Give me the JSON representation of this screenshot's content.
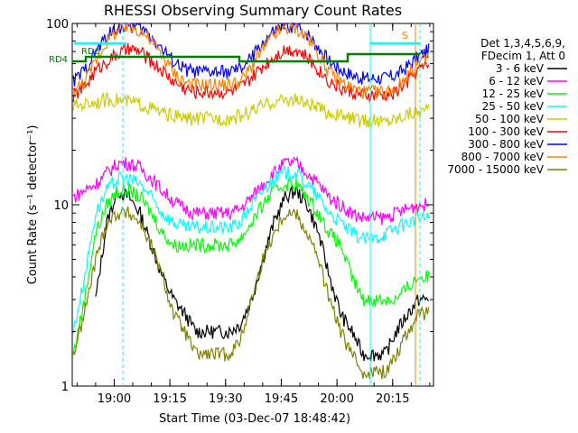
{
  "chart_data": {
    "type": "line",
    "title": "RHESSI Observing Summary Count Rates",
    "xlabel": "Start Time (03-Dec-07 18:48:42)",
    "ylabel": "Count Rate (s⁻¹ detector⁻¹)",
    "y_scale": "log",
    "ylim": [
      1,
      100
    ],
    "xlim": [
      "18:48:42",
      "20:26:00"
    ],
    "x_ticks": [
      "19:00",
      "19:15",
      "19:30",
      "19:45",
      "20:00",
      "20:15"
    ],
    "y_ticks": [
      "1",
      "10",
      "100"
    ],
    "legend_header": [
      "Det 1,3,4,5,6,9,",
      "FDecim 1, Att 0"
    ],
    "legend_position": "right",
    "annotations": [
      "RD0",
      "RD4",
      "S"
    ],
    "x": [
      "18:49",
      "18:52",
      "18:55",
      "18:58",
      "19:01",
      "19:04",
      "19:07",
      "19:10",
      "19:13",
      "19:16",
      "19:19",
      "19:22",
      "19:25",
      "19:28",
      "19:31",
      "19:34",
      "19:37",
      "19:40",
      "19:43",
      "19:46",
      "19:49",
      "19:52",
      "19:55",
      "19:58",
      "20:01",
      "20:04",
      "20:07",
      "20:10",
      "20:13",
      "20:16",
      "20:19",
      "20:22",
      "20:25"
    ],
    "series": [
      {
        "name": "3 - 6 keV",
        "color": "#000000",
        "values": [
          null,
          null,
          3,
          8,
          12,
          11,
          9,
          6,
          4,
          3,
          2.5,
          2,
          2,
          2,
          2,
          2.2,
          3,
          5,
          8,
          11,
          12,
          10,
          7,
          4,
          2.5,
          2,
          1.5,
          1.5,
          1.5,
          2,
          2.5,
          3,
          3
        ]
      },
      {
        "name": "6 - 12 keV",
        "color": "#ff00ff",
        "values": [
          11,
          12,
          13,
          15,
          17,
          17,
          16,
          14,
          12,
          10.5,
          9.5,
          9,
          9,
          9,
          9,
          9.5,
          11,
          13,
          15,
          17,
          17,
          15,
          13,
          11,
          10,
          9,
          8.5,
          8.5,
          8.5,
          9,
          9.5,
          10,
          10
        ]
      },
      {
        "name": "12 - 25 keV",
        "color": "#00ff00",
        "values": [
          1.5,
          3,
          7,
          10,
          12,
          12,
          11,
          9,
          7,
          6,
          6,
          6,
          6,
          6,
          6,
          6.5,
          8,
          10,
          12,
          13,
          13,
          11,
          9,
          7,
          6,
          4,
          3,
          3,
          3,
          3,
          3.5,
          4,
          4
        ]
      },
      {
        "name": "25 - 50 keV",
        "color": "#00ffff",
        "values": [
          2,
          4,
          9,
          12,
          14,
          14,
          13,
          11,
          9,
          8,
          7.5,
          7.5,
          7.5,
          7.5,
          7.5,
          8,
          10,
          12,
          14,
          15,
          15,
          13,
          11,
          9,
          8,
          7,
          6.5,
          6.5,
          7,
          7.5,
          8,
          8.5,
          8.5
        ]
      },
      {
        "name": "50 - 100 keV",
        "color": "#cccc00",
        "values": [
          35,
          36,
          37,
          38,
          38,
          37,
          36,
          34,
          32,
          31,
          30,
          30,
          30,
          30,
          30,
          31,
          33,
          35,
          37,
          38,
          38,
          36,
          34,
          32,
          31,
          30,
          29,
          29,
          29,
          30,
          32,
          33,
          33
        ]
      },
      {
        "name": "100 - 300 keV",
        "color": "#ff0000",
        "values": [
          40,
          45,
          55,
          62,
          68,
          72,
          70,
          62,
          55,
          48,
          44,
          42,
          42,
          42,
          42,
          44,
          50,
          58,
          66,
          72,
          72,
          65,
          56,
          48,
          44,
          42,
          40,
          40,
          40,
          42,
          48,
          56,
          60
        ]
      },
      {
        "name": "300 - 800 keV",
        "color": "#0000ff",
        "values": [
          48,
          55,
          70,
          85,
          95,
          97,
          95,
          85,
          72,
          62,
          56,
          54,
          54,
          54,
          54,
          56,
          65,
          78,
          90,
          97,
          97,
          88,
          74,
          62,
          56,
          52,
          50,
          50,
          50,
          52,
          58,
          66,
          72
        ]
      },
      {
        "name": "800 - 7000 keV",
        "color": "#ff8000",
        "values": [
          42,
          48,
          62,
          80,
          92,
          95,
          92,
          80,
          66,
          54,
          48,
          46,
          46,
          46,
          46,
          48,
          58,
          72,
          86,
          94,
          94,
          84,
          68,
          54,
          48,
          44,
          42,
          42,
          42,
          44,
          52,
          60,
          66
        ]
      },
      {
        "name": "7000 - 15000 keV",
        "color": "#808000",
        "values": [
          1.5,
          2.5,
          5,
          8,
          9,
          9,
          8,
          6,
          4,
          2.5,
          2,
          1.5,
          1.5,
          1.5,
          1.5,
          1.8,
          3,
          5,
          7,
          9,
          9,
          7,
          5,
          3,
          2,
          1.5,
          1.2,
          1.2,
          1.2,
          1.5,
          2,
          2.5,
          2.5
        ]
      }
    ]
  }
}
